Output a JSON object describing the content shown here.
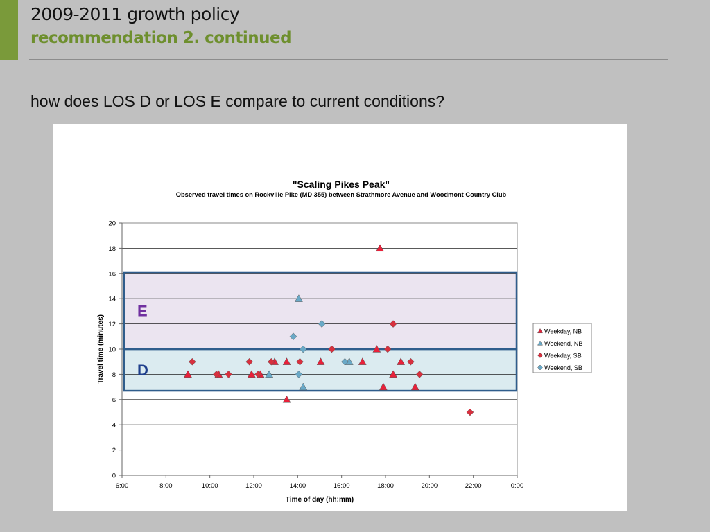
{
  "slide": {
    "title_line1": "2009-2011 growth policy",
    "title_line2": "recommendation 2. continued",
    "question": "how does LOS D or LOS E compare to current conditions?"
  },
  "colors": {
    "accent_green": "#7a9a3a",
    "title2_green": "#6e8f2e",
    "weekday_nb": "#e8213a",
    "weekend_nb": "#6aa9c7",
    "weekday_sb": "#d8303e",
    "weekend_sb": "#6aa9c7",
    "band_e": "#ebe4f0",
    "band_d": "#dbebf0",
    "band_border": "#2f5d8c",
    "label_e": "#7030a0",
    "label_d": "#1f3f8c"
  },
  "chart_data": {
    "type": "scatter",
    "title": "\"Scaling Pikes Peak\"",
    "subtitle": "Observed travel times on Rockville Pike (MD 355) between Strathmore Avenue and Woodmont Country Club",
    "xlabel": "Time of day (hh:mm)",
    "ylabel": "Travel time (minutes)",
    "xlim": [
      6,
      24
    ],
    "ylim": [
      0,
      20
    ],
    "x_ticks": [
      6,
      8,
      10,
      12,
      14,
      16,
      18,
      20,
      22,
      24
    ],
    "x_tick_labels": [
      "6:00",
      "8:00",
      "10:00",
      "12:00",
      "14:00",
      "16:00",
      "18:00",
      "20:00",
      "22:00",
      "0:00"
    ],
    "y_ticks": [
      0,
      2,
      4,
      6,
      8,
      10,
      12,
      14,
      16,
      18,
      20
    ],
    "y_tick_labels": [
      "0",
      "2",
      "4",
      "6",
      "8",
      "10",
      "12",
      "14",
      "16",
      "18",
      "20"
    ],
    "grid": "horizontal",
    "legend_position": "right",
    "bands": [
      {
        "label": "E",
        "y_from": 10,
        "y_to": 16.1
      },
      {
        "label": "D",
        "y_from": 6.7,
        "y_to": 10
      }
    ],
    "series": [
      {
        "name": "Weekday, NB",
        "marker": "triangle",
        "points": [
          {
            "x": 9.0,
            "y": 8
          },
          {
            "x": 10.4,
            "y": 8
          },
          {
            "x": 11.9,
            "y": 8
          },
          {
            "x": 12.3,
            "y": 8
          },
          {
            "x": 12.95,
            "y": 9
          },
          {
            "x": 13.5,
            "y": 9
          },
          {
            "x": 13.5,
            "y": 6
          },
          {
            "x": 15.05,
            "y": 9
          },
          {
            "x": 16.95,
            "y": 9
          },
          {
            "x": 17.6,
            "y": 10
          },
          {
            "x": 17.75,
            "y": 18
          },
          {
            "x": 17.9,
            "y": 7
          },
          {
            "x": 18.35,
            "y": 8
          },
          {
            "x": 18.7,
            "y": 9
          },
          {
            "x": 19.35,
            "y": 7
          }
        ]
      },
      {
        "name": "Weekend, NB",
        "marker": "triangle",
        "points": [
          {
            "x": 12.7,
            "y": 8
          },
          {
            "x": 14.05,
            "y": 14
          },
          {
            "x": 14.25,
            "y": 7
          },
          {
            "x": 16.35,
            "y": 9
          }
        ]
      },
      {
        "name": "Weekday, SB",
        "marker": "diamond",
        "points": [
          {
            "x": 9.2,
            "y": 9
          },
          {
            "x": 10.3,
            "y": 8
          },
          {
            "x": 10.85,
            "y": 8
          },
          {
            "x": 11.8,
            "y": 9
          },
          {
            "x": 12.2,
            "y": 8
          },
          {
            "x": 12.8,
            "y": 9
          },
          {
            "x": 14.1,
            "y": 9
          },
          {
            "x": 15.55,
            "y": 10
          },
          {
            "x": 18.1,
            "y": 10
          },
          {
            "x": 18.35,
            "y": 12
          },
          {
            "x": 19.15,
            "y": 9
          },
          {
            "x": 19.55,
            "y": 8
          },
          {
            "x": 21.85,
            "y": 5
          }
        ]
      },
      {
        "name": "Weekend, SB",
        "marker": "diamond",
        "points": [
          {
            "x": 13.8,
            "y": 11
          },
          {
            "x": 14.05,
            "y": 8
          },
          {
            "x": 14.25,
            "y": 10
          },
          {
            "x": 15.1,
            "y": 12
          },
          {
            "x": 16.15,
            "y": 9
          }
        ]
      }
    ]
  }
}
